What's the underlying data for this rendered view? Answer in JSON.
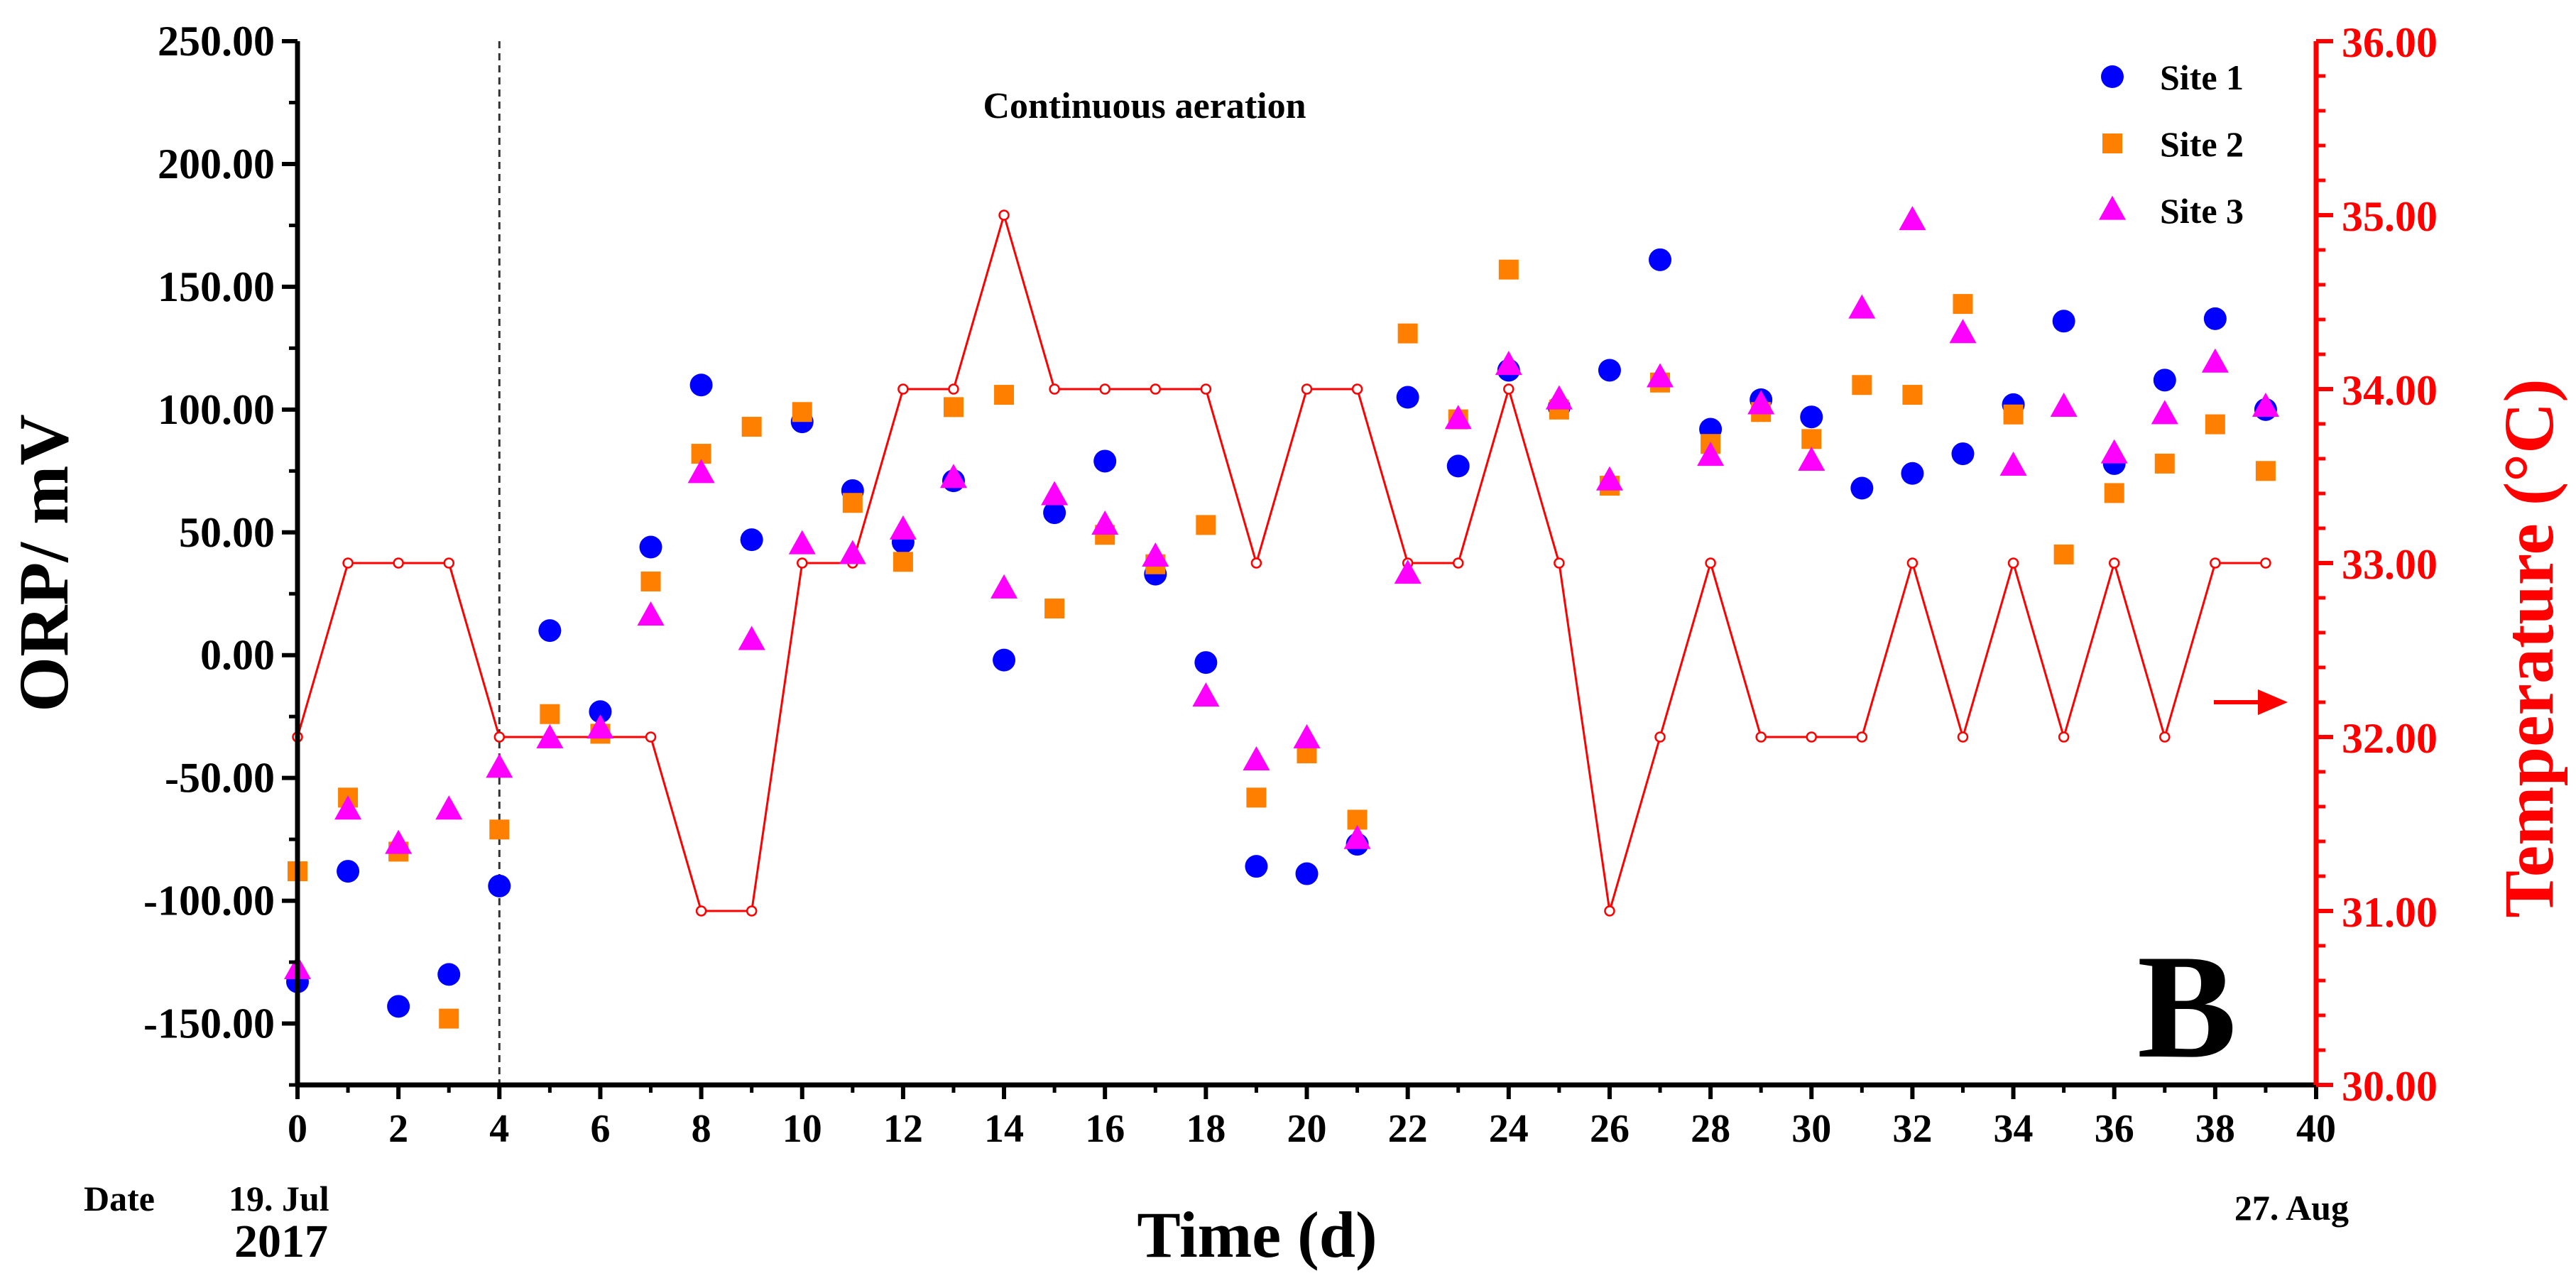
{
  "chart_data": {
    "type": "scatter",
    "panel_label": "B",
    "annotation": "Continuous  aeration",
    "xlabel": "Time (d)",
    "ylabel": "ORP/ mV",
    "y2label": "Temperature (°C)",
    "xlim": [
      0,
      40
    ],
    "ylim": [
      -175,
      250
    ],
    "y2lim": [
      30,
      36
    ],
    "x_ticks": [
      0,
      2,
      4,
      6,
      8,
      10,
      12,
      14,
      16,
      18,
      20,
      22,
      24,
      26,
      28,
      30,
      32,
      34,
      36,
      38,
      40
    ],
    "x_tick_labels": [
      "0",
      "2",
      "4",
      "6",
      "8",
      "10",
      "12",
      "14",
      "16",
      "18",
      "20",
      "22",
      "24",
      "26",
      "28",
      "30",
      "32",
      "34",
      "36",
      "38",
      "40"
    ],
    "y_ticks": [
      -150,
      -100,
      -50,
      0,
      50,
      100,
      150,
      200,
      250
    ],
    "y_tick_labels": [
      "-150.00",
      "-100.00",
      "-50.00",
      "0.00",
      "50.00",
      "100.00",
      "150.00",
      "200.00",
      "250.00"
    ],
    "y2_ticks": [
      30,
      31,
      32,
      33,
      34,
      35,
      36
    ],
    "y2_tick_labels": [
      "30.00",
      "31.00",
      "32.00",
      "33.00",
      "34.00",
      "35.00",
      "36.00"
    ],
    "vline_x": 4,
    "date_label": "Date",
    "start_date": "19. Jul",
    "start_year": "2017",
    "end_date": "27. Aug",
    "legend_position": "top-right",
    "colors": {
      "site1": "#0000ff",
      "site2": "#ff8000",
      "site3": "#ff00ff",
      "temperature": "#ff0000",
      "axis": "#000000"
    },
    "series": [
      {
        "name": "Site 1",
        "marker": "circle",
        "x": [
          0,
          1,
          2,
          3,
          4,
          5,
          6,
          7,
          8,
          9,
          10,
          11,
          12,
          13,
          14,
          15,
          16,
          17,
          18,
          19,
          20,
          21,
          22,
          23,
          24,
          25,
          26,
          27,
          28,
          29,
          30,
          31,
          32,
          33,
          34,
          35,
          36,
          37,
          38,
          39
        ],
        "values": [
          -133,
          -88,
          -143,
          -130,
          -94,
          10,
          -23,
          44,
          110,
          47,
          95,
          67,
          46,
          71,
          -2,
          58,
          79,
          33,
          -3,
          -86,
          -89,
          -77,
          105,
          77,
          116,
          101,
          116,
          161,
          92,
          104,
          97,
          68,
          74,
          82,
          102,
          136,
          78,
          112,
          137,
          100
        ]
      },
      {
        "name": "Site 2",
        "marker": "square",
        "x": [
          0,
          1,
          2,
          3,
          4,
          5,
          6,
          7,
          8,
          9,
          10,
          11,
          12,
          13,
          14,
          15,
          16,
          17,
          18,
          19,
          20,
          21,
          22,
          23,
          24,
          25,
          26,
          27,
          28,
          29,
          30,
          31,
          32,
          33,
          34,
          35,
          36,
          37,
          38,
          39
        ],
        "values": [
          -88,
          -58,
          -80,
          -148,
          -71,
          -24,
          -32,
          30,
          82,
          93,
          99,
          62,
          38,
          101,
          106,
          19,
          49,
          37,
          53,
          -58,
          -40,
          -67,
          131,
          96,
          157,
          100,
          69,
          111,
          86,
          99,
          88,
          110,
          106,
          143,
          98,
          41,
          66,
          78,
          94,
          75
        ]
      },
      {
        "name": "Site 3",
        "marker": "triangle",
        "x": [
          0,
          1,
          2,
          3,
          4,
          5,
          6,
          7,
          8,
          9,
          10,
          11,
          12,
          13,
          14,
          15,
          16,
          17,
          18,
          19,
          20,
          21,
          22,
          23,
          24,
          25,
          26,
          27,
          28,
          29,
          30,
          31,
          32,
          33,
          34,
          35,
          36,
          37,
          38,
          39
        ],
        "values": [
          -128,
          -63,
          -77,
          -63,
          -46,
          -34,
          -30,
          16,
          74,
          6,
          45,
          41,
          51,
          72,
          27,
          65,
          53,
          40,
          -17,
          -43,
          -34,
          -75,
          33,
          96,
          118,
          104,
          71,
          113,
          81,
          102,
          79,
          141,
          177,
          131,
          77,
          101,
          82,
          98,
          119,
          101
        ]
      },
      {
        "name": "Temperature",
        "marker": "open-circle-line",
        "axis": "right",
        "x": [
          0,
          1,
          2,
          3,
          4,
          5,
          6,
          7,
          8,
          9,
          10,
          11,
          12,
          13,
          14,
          15,
          16,
          17,
          18,
          19,
          20,
          21,
          22,
          23,
          24,
          25,
          26,
          27,
          28,
          29,
          30,
          31,
          32,
          33,
          34,
          35,
          36,
          37,
          38,
          39
        ],
        "values": [
          32,
          33,
          33,
          33,
          32,
          32,
          32,
          32,
          31,
          31,
          33,
          33,
          34,
          34,
          35,
          34,
          34,
          34,
          34,
          33,
          34,
          34,
          33,
          33,
          34,
          33,
          31,
          32,
          33,
          32,
          32,
          32,
          33,
          32,
          33,
          32,
          33,
          32,
          33,
          33
        ]
      }
    ]
  }
}
